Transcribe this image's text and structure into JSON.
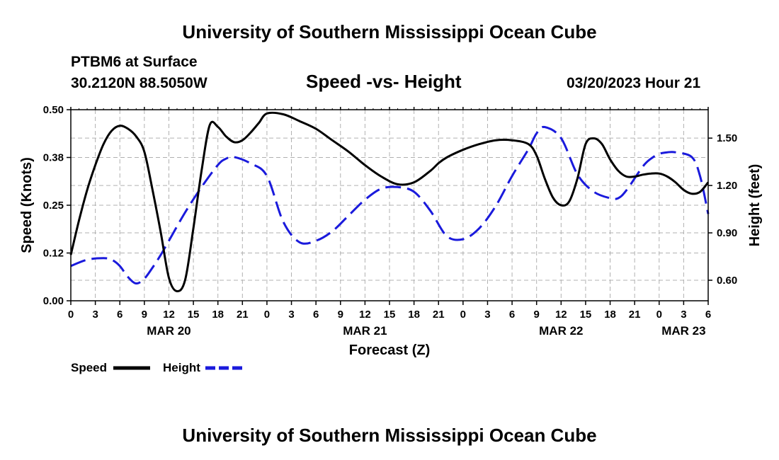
{
  "header": {
    "title": "University of Southern Mississippi Ocean Cube",
    "station": "PTBM6 at Surface",
    "coords": "30.2120N  88.5050W",
    "subtitle": "Speed -vs- Height",
    "datetime": "03/20/2023 Hour 21"
  },
  "footer": {
    "title": "University of Southern Mississippi Ocean Cube"
  },
  "chart_data": {
    "type": "line",
    "title": "Speed -vs- Height",
    "xlabel": "Forecast (Z)",
    "ylabel": "Speed (Knots)",
    "y2label": "Height (feet)",
    "x_units": "hours from MAR 20 00Z",
    "xlim": [
      0,
      78
    ],
    "ylim": [
      0,
      0.5
    ],
    "y2lim": [
      0.47,
      1.68
    ],
    "x_tick_labels": [
      "0",
      "3",
      "6",
      "9",
      "12",
      "15",
      "18",
      "21",
      "0",
      "3",
      "6",
      "9",
      "12",
      "15",
      "18",
      "21",
      "0",
      "3",
      "6",
      "9",
      "12",
      "15",
      "18",
      "21",
      "0",
      "3",
      "6"
    ],
    "y_ticks": [
      0.0,
      0.125,
      0.25,
      0.375,
      0.5
    ],
    "y_tick_labels": [
      "0.00",
      "0.12",
      "0.25",
      "0.38",
      "0.50"
    ],
    "y2_ticks": [
      0.6,
      0.9,
      1.2,
      1.5
    ],
    "y2_tick_labels": [
      "0.60",
      "0.90",
      "1.20",
      "1.50"
    ],
    "date_labels": [
      {
        "label": "MAR 20",
        "x": 12
      },
      {
        "label": "MAR 21",
        "x": 36
      },
      {
        "label": "MAR 22",
        "x": 60
      },
      {
        "label": "MAR 23",
        "x": 75
      }
    ],
    "grid": true,
    "series": [
      {
        "name": "Speed",
        "axis": "left",
        "color": "#000000",
        "dash": "solid",
        "x": [
          0,
          1,
          2,
          3,
          4,
          5,
          6,
          7,
          8,
          9,
          10,
          11,
          12,
          13,
          14,
          15,
          16,
          17,
          18,
          19,
          20,
          21,
          22,
          23,
          24,
          26,
          28,
          30,
          32,
          34,
          36,
          38,
          40,
          42,
          44,
          45,
          46,
          48,
          50,
          52,
          54,
          56,
          57,
          58,
          59,
          60,
          61,
          62,
          63,
          64,
          65,
          66,
          67,
          68,
          69,
          70,
          71,
          72,
          73,
          74,
          75,
          76,
          77,
          78
        ],
        "y": [
          0.12,
          0.21,
          0.29,
          0.355,
          0.41,
          0.445,
          0.458,
          0.45,
          0.43,
          0.39,
          0.29,
          0.18,
          0.06,
          0.025,
          0.055,
          0.19,
          0.34,
          0.46,
          0.455,
          0.43,
          0.415,
          0.42,
          0.44,
          0.465,
          0.49,
          0.488,
          0.47,
          0.45,
          0.42,
          0.39,
          0.355,
          0.325,
          0.305,
          0.31,
          0.34,
          0.36,
          0.375,
          0.395,
          0.41,
          0.42,
          0.42,
          0.41,
          0.38,
          0.32,
          0.27,
          0.25,
          0.26,
          0.32,
          0.41,
          0.425,
          0.41,
          0.37,
          0.34,
          0.325,
          0.325,
          0.33,
          0.333,
          0.333,
          0.325,
          0.31,
          0.29,
          0.28,
          0.285,
          0.31
        ]
      },
      {
        "name": "Height",
        "axis": "right",
        "color": "#1a1adc",
        "dash": "dashed",
        "x": [
          0,
          2,
          4,
          5,
          6,
          7,
          8,
          9,
          10,
          11,
          12,
          14,
          16,
          18,
          19,
          20,
          22,
          24,
          26,
          28,
          30,
          32,
          34,
          36,
          38,
          40,
          42,
          44,
          46,
          48,
          50,
          52,
          54,
          56,
          57,
          58,
          60,
          62,
          64,
          66,
          67,
          68,
          70,
          71,
          72,
          73,
          74,
          76,
          77,
          78
        ],
        "y": [
          0.69,
          0.73,
          0.74,
          0.73,
          0.69,
          0.62,
          0.58,
          0.61,
          0.68,
          0.76,
          0.85,
          1.03,
          1.19,
          1.33,
          1.37,
          1.38,
          1.34,
          1.26,
          0.97,
          0.84,
          0.85,
          0.91,
          1.01,
          1.11,
          1.18,
          1.19,
          1.16,
          1.04,
          0.88,
          0.86,
          0.93,
          1.07,
          1.26,
          1.43,
          1.53,
          1.57,
          1.5,
          1.27,
          1.16,
          1.12,
          1.12,
          1.17,
          1.32,
          1.37,
          1.4,
          1.41,
          1.41,
          1.38,
          1.26,
          1.02
        ]
      }
    ],
    "legend": [
      {
        "label": "Speed",
        "color": "#000000",
        "dash": "solid"
      },
      {
        "label": "Height",
        "color": "#1a1adc",
        "dash": "dashed"
      }
    ]
  }
}
